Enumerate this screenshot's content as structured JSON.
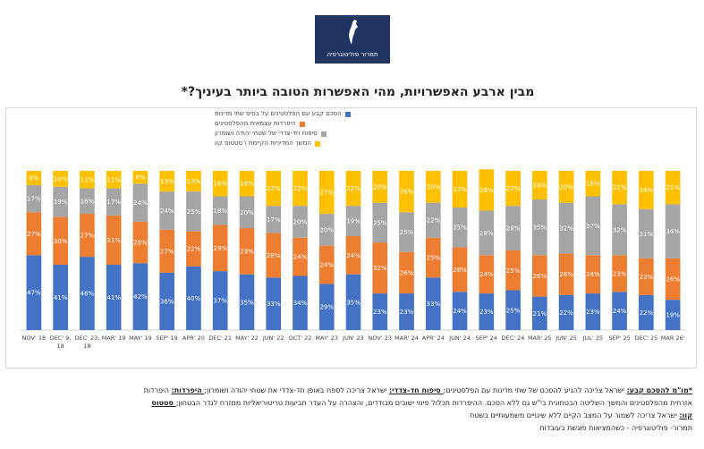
{
  "logo": {
    "text": "תמרור פוליטוגרפיה"
  },
  "title": "מבין ארבע האפשרויות, מהי האפשרות הטובה ביותר בעיניך?*",
  "chart_data": {
    "type": "bar",
    "stacked": true,
    "orientation": "vertical",
    "categories": [
      "NOV' 18",
      "DEC' 9, 18",
      "DEC' 23, 18",
      "MAR' 19",
      "MAY' 19",
      "SEP' 19",
      "APR' 20",
      "DEC' 21",
      "MAY' 22",
      "JUN' 22",
      "OCT' 22",
      "MAY' 23",
      "JUN' 23",
      "NOV' 23",
      "MAR' 24",
      "APR' 24",
      "JUN' 24",
      "SEP' 24",
      "DEC' 24",
      "MAR' 25",
      "JUN' 25",
      "JUL' 25",
      "SEP' 25",
      "DEC' 25",
      "MAR 26'"
    ],
    "category_labels": [
      [
        "NOV' 18"
      ],
      [
        "DEC' 9,",
        "18"
      ],
      [
        "DEC' 23,",
        "18"
      ],
      [
        "MAR' 19"
      ],
      [
        "MAY' 19"
      ],
      [
        "SEP' 19"
      ],
      [
        "APR' 20"
      ],
      [
        "DEC' 21"
      ],
      [
        "MAY' 22"
      ],
      [
        "JUN' 22"
      ],
      [
        "OCT' 22"
      ],
      [
        "MAY' 23"
      ],
      [
        "JUN' 23"
      ],
      [
        "NOV' 23"
      ],
      [
        "MAR' 24"
      ],
      [
        "APR' 24"
      ],
      [
        "JUN' 24"
      ],
      [
        "SEP' 24"
      ],
      [
        "DEC' 24"
      ],
      [
        "MAR' 25"
      ],
      [
        "JUN' 25"
      ],
      [
        "JUL' 25"
      ],
      [
        "SEP' 25"
      ],
      [
        "DEC' 25"
      ],
      [
        "MAR 26'"
      ]
    ],
    "series": [
      {
        "name": "הסכם קבע עם הפלסטינים על בסיס שתי מדינות",
        "color": "#4472c4",
        "values": [
          47,
          41,
          46,
          41,
          42,
          36,
          40,
          37,
          35,
          33,
          34,
          29,
          35,
          23,
          23,
          33,
          24,
          23,
          25,
          21,
          22,
          23,
          24,
          22,
          19
        ]
      },
      {
        "name": "היפרדות עצמאית מהפלסטינים",
        "color": "#ed7d31",
        "values": [
          27,
          30,
          27,
          31,
          26,
          27,
          22,
          29,
          29,
          28,
          24,
          24,
          24,
          32,
          26,
          25,
          28,
          24,
          25,
          26,
          26,
          24,
          23,
          23,
          26
        ]
      },
      {
        "name": "סיפוח חד-צדדי של שטחי יהודה ושומרון",
        "color": "#a5a5a5",
        "values": [
          17,
          19,
          16,
          17,
          24,
          24,
          25,
          18,
          20,
          17,
          20,
          20,
          19,
          25,
          25,
          22,
          25,
          28,
          28,
          35,
          32,
          37,
          32,
          31,
          34
        ]
      },
      {
        "name": "המשך המדיניות הקיימת \\ סטטוס קוו",
        "color": "#ffc000",
        "values": [
          9,
          10,
          11,
          11,
          8,
          13,
          13,
          16,
          16,
          22,
          22,
          27,
          22,
          20,
          26,
          20,
          23,
          26,
          22,
          18,
          20,
          16,
          21,
          24,
          21
        ]
      }
    ],
    "ylim": [
      0,
      100
    ],
    "value_suffix": "%"
  },
  "notes": {
    "line1_label": "*מו\"מ להסכם קבע:",
    "line1_text": " ישראל צריכה להגיע להסכם של שתי מדינות עם הפלסטינים;",
    "line1_label2": " סיפוח חד-צדדי:",
    "line1_text2": " ישראל צריכה לספח באופן חד-צדדי את שטחי יהודה ושומרון;",
    "line1_label3": " היפרדות:",
    "line1_text3": " היפרדות",
    "line2_text": "אזרחית מהפלסטינים והמשך השליטה הבטחונית בי\"ש גם ללא הסכם. ההיפרדות תכלול פינוי ישובים מבודדים, והצהרה על העדר תביעות טריטוריאליות ממזרח לגדר הבטחון;",
    "line2_label": " סטטוס",
    "line3_label": "קוו:",
    "line3_text": " ישראל צריכה לשמור על המצב הקיים ללא שינויים משמעותיים בשטח",
    "line4_text": "תמרור- פוליטוגרפיה - כשהמציאות פוגשת בעובדות"
  }
}
